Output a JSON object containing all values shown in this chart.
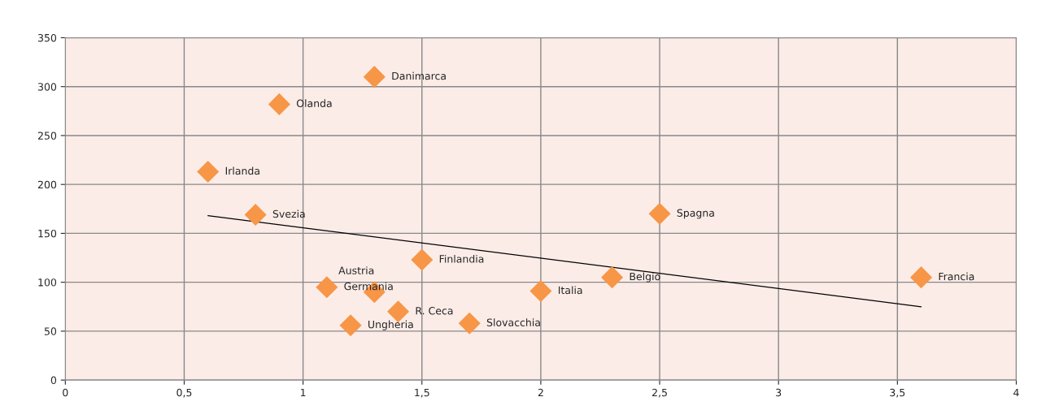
{
  "chart_data": {
    "type": "scatter",
    "xlim": [
      0,
      4
    ],
    "ylim": [
      0,
      350
    ],
    "xticks": [
      0,
      {
        "value": 0.5,
        "label": "0,5"
      },
      1,
      {
        "value": 1.5,
        "label": "1,5"
      },
      2,
      {
        "value": 2.5,
        "label": "2,5"
      },
      3,
      {
        "value": 3.5,
        "label": "3,5"
      },
      4
    ],
    "yticks": [
      0,
      50,
      100,
      150,
      200,
      250,
      300,
      350
    ],
    "grid": true,
    "marker": "diamond",
    "legend": false,
    "series": [
      {
        "color": "#f79646",
        "x": [
          1.3,
          0.9,
          0.6,
          0.8,
          2.5,
          1.5,
          2.3,
          3.6,
          1.1,
          1.3,
          2.0,
          1.4,
          1.2,
          1.7
        ],
        "values": [
          310,
          282,
          213,
          169,
          170,
          123,
          105,
          105,
          95,
          90,
          91,
          70,
          56,
          58
        ]
      },
      {
        "type": "line",
        "color": "#000000",
        "marker": "none",
        "x": [
          0.6,
          3.6
        ],
        "values": [
          168,
          75
        ]
      }
    ],
    "annotations": [
      {
        "text": "Danimarca",
        "x": 1.3,
        "y": 310
      },
      {
        "text": "Olanda",
        "x": 0.9,
        "y": 282
      },
      {
        "text": "Irlanda",
        "x": 0.6,
        "y": 213
      },
      {
        "text": "Svezia",
        "x": 0.8,
        "y": 169
      },
      {
        "text": "Spagna",
        "x": 2.5,
        "y": 170
      },
      {
        "text": "Finlandia",
        "x": 1.5,
        "y": 123
      },
      {
        "text": "Belgio",
        "x": 2.3,
        "y": 105
      },
      {
        "text": "Francia",
        "x": 3.6,
        "y": 105
      },
      {
        "text": "Germania",
        "x": 1.1,
        "y": 95
      },
      {
        "text": "Austria",
        "x": 1.3,
        "y": 90
      },
      {
        "text": "Italia",
        "x": 2.0,
        "y": 91
      },
      {
        "text": "R. Ceca",
        "x": 1.4,
        "y": 70
      },
      {
        "text": "Ungheria",
        "x": 1.2,
        "y": 56
      },
      {
        "text": "Slovacchia",
        "x": 1.7,
        "y": 58
      }
    ]
  }
}
